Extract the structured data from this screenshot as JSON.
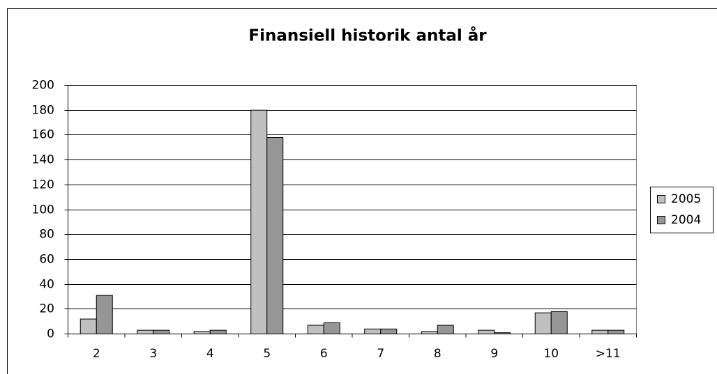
{
  "chart_data": {
    "type": "bar",
    "title": "Finansiell historik antal år",
    "categories": [
      "2",
      "3",
      "4",
      "5",
      "6",
      "7",
      "8",
      "9",
      "10",
      ">11"
    ],
    "series": [
      {
        "name": "2005",
        "color": "#c0c0c0",
        "values": [
          12,
          3,
          2,
          180,
          7,
          4,
          2,
          3,
          17,
          3
        ]
      },
      {
        "name": "2004",
        "color": "#969696",
        "values": [
          31,
          3,
          3,
          158,
          9,
          4,
          7,
          1,
          18,
          3
        ]
      }
    ],
    "ylim": [
      0,
      200
    ],
    "yticks": [
      0,
      20,
      40,
      60,
      80,
      100,
      120,
      140,
      160,
      180,
      200
    ],
    "grid": true,
    "legend": "right"
  }
}
